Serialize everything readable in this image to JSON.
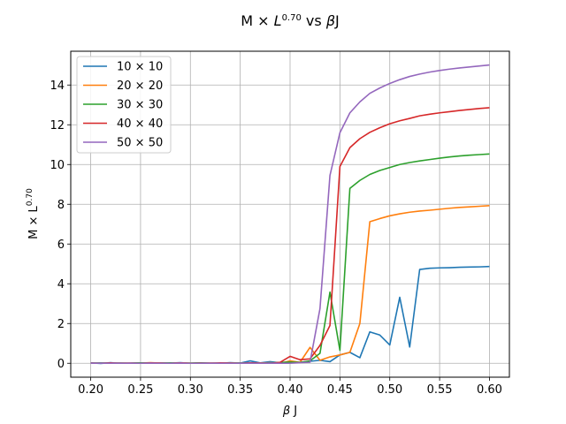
{
  "chart_data": {
    "type": "line",
    "title": "M × L^0.70 vs βJ",
    "title_parts": {
      "pre": "M × ",
      "italic_L": "L",
      "exp": "0.70",
      "mid": " vs ",
      "italic_beta": "β",
      "post": "J"
    },
    "xlabel": "β J",
    "xlabel_parts": {
      "beta": "β",
      "rest": " J"
    },
    "ylabel": "M × L^0.70",
    "ylabel_parts": {
      "base": "M × L",
      "exp": "0.70"
    },
    "xlim": [
      0.18,
      0.62
    ],
    "ylim": [
      -0.7,
      15.7
    ],
    "xticks": [
      "0.20",
      "0.25",
      "0.30",
      "0.35",
      "0.40",
      "0.45",
      "0.50",
      "0.55",
      "0.60"
    ],
    "yticks": [
      "0",
      "2",
      "4",
      "6",
      "8",
      "10",
      "12",
      "14"
    ],
    "grid": true,
    "legend": "top-left",
    "x": [
      0.2,
      0.21,
      0.22,
      0.23,
      0.24,
      0.25,
      0.26,
      0.27,
      0.28,
      0.29,
      0.3,
      0.31,
      0.32,
      0.33,
      0.34,
      0.35,
      0.36,
      0.37,
      0.38,
      0.39,
      0.4,
      0.41,
      0.42,
      0.43,
      0.44,
      0.45,
      0.46,
      0.47,
      0.48,
      0.49,
      0.5,
      0.51,
      0.52,
      0.53,
      0.54,
      0.55,
      0.56,
      0.57,
      0.58,
      0.59,
      0.6
    ],
    "series": [
      {
        "name": "10 × 10",
        "color": "#1f77b4",
        "values": [
          0.02,
          -0.01,
          0.03,
          0.0,
          0.01,
          0.02,
          0.0,
          0.02,
          0.01,
          0.03,
          0.0,
          0.02,
          0.01,
          0.0,
          0.03,
          0.01,
          0.12,
          0.02,
          0.08,
          0.02,
          0.06,
          0.05,
          0.1,
          0.15,
          0.08,
          0.42,
          0.55,
          0.28,
          1.58,
          1.42,
          0.92,
          3.32,
          0.82,
          4.72,
          4.78,
          4.8,
          4.81,
          4.83,
          4.84,
          4.85,
          4.87
        ]
      },
      {
        "name": "20 × 20",
        "color": "#ff7f0e",
        "values": [
          0.0,
          0.01,
          0.0,
          0.02,
          0.0,
          0.01,
          0.03,
          0.01,
          0.0,
          0.02,
          0.01,
          0.0,
          0.02,
          0.0,
          0.01,
          0.02,
          0.0,
          0.01,
          0.03,
          0.0,
          0.12,
          0.05,
          0.8,
          0.15,
          0.32,
          0.42,
          0.55,
          2.0,
          7.12,
          7.28,
          7.42,
          7.52,
          7.6,
          7.66,
          7.7,
          7.75,
          7.8,
          7.84,
          7.87,
          7.9,
          7.93
        ]
      },
      {
        "name": "30 × 30",
        "color": "#2ca02c",
        "values": [
          0.0,
          0.02,
          0.0,
          0.01,
          0.0,
          0.02,
          0.01,
          0.0,
          0.02,
          0.0,
          0.01,
          0.02,
          0.0,
          0.01,
          0.0,
          0.02,
          0.01,
          0.0,
          0.02,
          0.04,
          0.06,
          0.04,
          0.12,
          0.5,
          3.58,
          0.65,
          8.8,
          9.2,
          9.5,
          9.7,
          9.85,
          10.0,
          10.1,
          10.18,
          10.25,
          10.32,
          10.38,
          10.43,
          10.47,
          10.5,
          10.53
        ]
      },
      {
        "name": "40 × 40",
        "color": "#d62728",
        "values": [
          0.01,
          0.0,
          0.02,
          0.0,
          0.01,
          0.0,
          0.02,
          0.01,
          0.0,
          0.02,
          0.0,
          0.01,
          0.0,
          0.02,
          0.01,
          0.0,
          0.02,
          0.01,
          0.0,
          0.05,
          0.35,
          0.18,
          0.22,
          0.9,
          1.9,
          9.9,
          10.85,
          11.3,
          11.62,
          11.85,
          12.05,
          12.2,
          12.32,
          12.45,
          12.53,
          12.6,
          12.66,
          12.72,
          12.77,
          12.82,
          12.86
        ]
      },
      {
        "name": "50 × 50",
        "color": "#9467bd",
        "values": [
          0.0,
          0.01,
          0.0,
          0.01,
          0.0,
          0.0,
          0.01,
          0.0,
          0.0,
          0.01,
          0.0,
          0.0,
          0.01,
          0.0,
          0.0,
          0.01,
          0.0,
          0.0,
          0.01,
          0.0,
          0.0,
          0.03,
          0.05,
          2.75,
          9.45,
          11.6,
          12.6,
          13.15,
          13.58,
          13.85,
          14.08,
          14.27,
          14.43,
          14.55,
          14.65,
          14.73,
          14.8,
          14.86,
          14.91,
          14.96,
          15.01
        ]
      }
    ]
  }
}
